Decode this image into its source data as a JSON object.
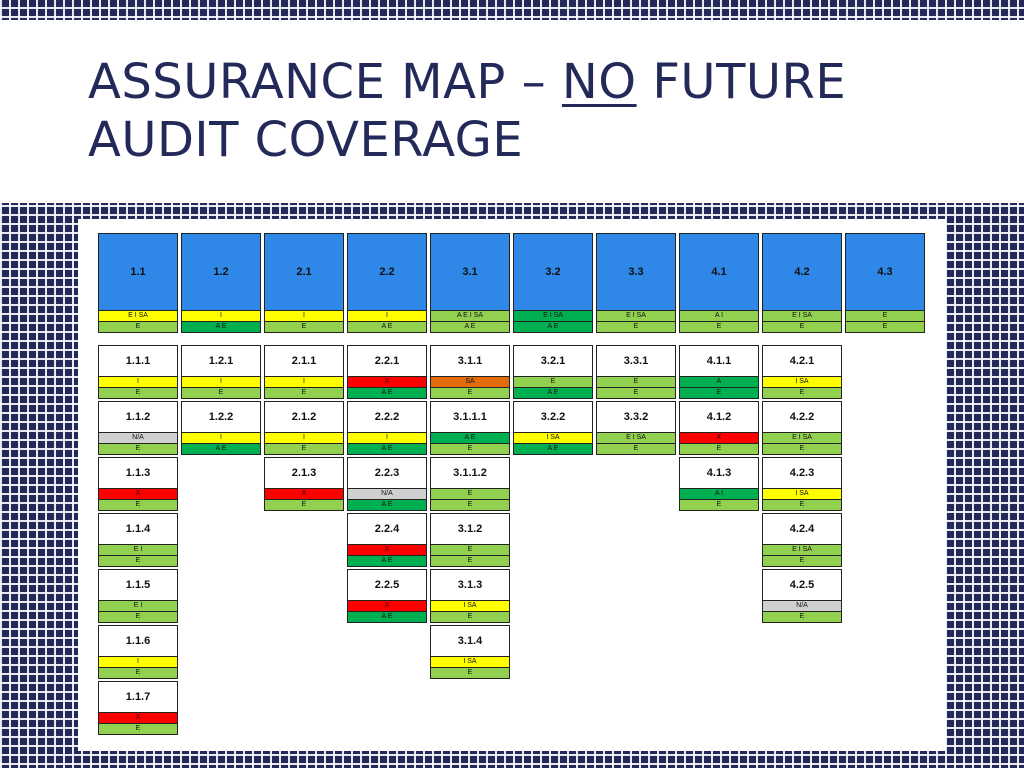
{
  "slide": {
    "title_line1_before": "ASSURANCE MAP – ",
    "title_line1_emph": "NO",
    "title_line1_after": " FUTURE",
    "title_line2": "AUDIT COVERAGE"
  },
  "map": {
    "columns": [
      {
        "id": "1.1",
        "rating": "E I SA",
        "rating_color": "yellow",
        "level": "E",
        "level_color": "lgreen",
        "children": [
          {
            "id": "1.1.1",
            "rating": "I",
            "rating_color": "yellow",
            "level": "E",
            "level_color": "lgreen"
          },
          {
            "id": "1.1.2",
            "rating": "N/A",
            "rating_color": "gray",
            "level": "E",
            "level_color": "lgreen"
          },
          {
            "id": "1.1.3",
            "rating": "X",
            "rating_color": "red",
            "level": "E",
            "level_color": "lgreen"
          },
          {
            "id": "1.1.4",
            "rating": "E I",
            "rating_color": "lgreen",
            "level": "E",
            "level_color": "lgreen"
          },
          {
            "id": "1.1.5",
            "rating": "E I",
            "rating_color": "lgreen",
            "level": "E",
            "level_color": "lgreen"
          },
          {
            "id": "1.1.6",
            "rating": "I",
            "rating_color": "yellow",
            "level": "E",
            "level_color": "lgreen"
          },
          {
            "id": "1.1.7",
            "rating": "X",
            "rating_color": "red",
            "level": "E",
            "level_color": "lgreen"
          }
        ]
      },
      {
        "id": "1.2",
        "rating": "I",
        "rating_color": "yellow",
        "level": "A E",
        "level_color": "dgreen",
        "children": [
          {
            "id": "1.2.1",
            "rating": "I",
            "rating_color": "yellow",
            "level": "E",
            "level_color": "lgreen"
          },
          {
            "id": "1.2.2",
            "rating": "I",
            "rating_color": "yellow",
            "level": "A E",
            "level_color": "dgreen"
          }
        ]
      },
      {
        "id": "2.1",
        "rating": "I",
        "rating_color": "yellow",
        "level": "E",
        "level_color": "lgreen",
        "children": [
          {
            "id": "2.1.1",
            "rating": "I",
            "rating_color": "yellow",
            "level": "E",
            "level_color": "lgreen"
          },
          {
            "id": "2.1.2",
            "rating": "I",
            "rating_color": "yellow",
            "level": "E",
            "level_color": "lgreen"
          },
          {
            "id": "2.1.3",
            "rating": "X",
            "rating_color": "red",
            "level": "E",
            "level_color": "lgreen"
          }
        ]
      },
      {
        "id": "2.2",
        "rating": "I",
        "rating_color": "yellow",
        "level": "A E",
        "level_color": "lgreen",
        "children": [
          {
            "id": "2.2.1",
            "rating": "X",
            "rating_color": "red",
            "level": "A E",
            "level_color": "dgreen"
          },
          {
            "id": "2.2.2",
            "rating": "I",
            "rating_color": "yellow",
            "level": "A E",
            "level_color": "dgreen"
          },
          {
            "id": "2.2.3",
            "rating": "N/A",
            "rating_color": "gray",
            "level": "A E",
            "level_color": "dgreen"
          },
          {
            "id": "2.2.4",
            "rating": "X",
            "rating_color": "red",
            "level": "A E",
            "level_color": "dgreen"
          },
          {
            "id": "2.2.5",
            "rating": "X",
            "rating_color": "red",
            "level": "A E",
            "level_color": "dgreen"
          }
        ]
      },
      {
        "id": "3.1",
        "rating": "A E I SA",
        "rating_color": "lgreen",
        "level": "A E",
        "level_color": "lgreen",
        "children": [
          {
            "id": "3.1.1",
            "rating": "SA",
            "rating_color": "orange",
            "level": "E",
            "level_color": "lgreen"
          },
          {
            "id": "3.1.1.1",
            "rating": "A E",
            "rating_color": "dgreen",
            "level": "E",
            "level_color": "lgreen"
          },
          {
            "id": "3.1.1.2",
            "rating": "E",
            "rating_color": "lgreen",
            "level": "E",
            "level_color": "lgreen"
          },
          {
            "id": "3.1.2",
            "rating": "E",
            "rating_color": "lgreen",
            "level": "E",
            "level_color": "lgreen"
          },
          {
            "id": "3.1.3",
            "rating": "I SA",
            "rating_color": "yellow",
            "level": "E",
            "level_color": "lgreen"
          },
          {
            "id": "3.1.4",
            "rating": "I SA",
            "rating_color": "yellow",
            "level": "E",
            "level_color": "lgreen"
          }
        ]
      },
      {
        "id": "3.2",
        "rating": "E I SA",
        "rating_color": "dgreen",
        "level": "A E",
        "level_color": "dgreen",
        "children": [
          {
            "id": "3.2.1",
            "rating": "E",
            "rating_color": "lgreen",
            "level": "A E",
            "level_color": "dgreen"
          },
          {
            "id": "3.2.2",
            "rating": "I SA",
            "rating_color": "yellow",
            "level": "A E",
            "level_color": "dgreen"
          }
        ]
      },
      {
        "id": "3.3",
        "rating": "E I SA",
        "rating_color": "lgreen",
        "level": "E",
        "level_color": "lgreen",
        "children": [
          {
            "id": "3.3.1",
            "rating": "E",
            "rating_color": "lgreen",
            "level": "E",
            "level_color": "lgreen"
          },
          {
            "id": "3.3.2",
            "rating": "E I SA",
            "rating_color": "lgreen",
            "level": "E",
            "level_color": "lgreen"
          }
        ]
      },
      {
        "id": "4.1",
        "rating": "A I",
        "rating_color": "lgreen",
        "level": "E",
        "level_color": "lgreen",
        "children": [
          {
            "id": "4.1.1",
            "rating": "A",
            "rating_color": "dgreen",
            "level": "E",
            "level_color": "dgreen"
          },
          {
            "id": "4.1.2",
            "rating": "X",
            "rating_color": "red",
            "level": "E",
            "level_color": "lgreen"
          },
          {
            "id": "4.1.3",
            "rating": "A I",
            "rating_color": "dgreen",
            "level": "E",
            "level_color": "lgreen"
          }
        ]
      },
      {
        "id": "4.2",
        "rating": "E I SA",
        "rating_color": "lgreen",
        "level": "E",
        "level_color": "lgreen",
        "children": [
          {
            "id": "4.2.1",
            "rating": "I SA",
            "rating_color": "yellow",
            "level": "E",
            "level_color": "lgreen"
          },
          {
            "id": "4.2.2",
            "rating": "E I SA",
            "rating_color": "lgreen",
            "level": "E",
            "level_color": "lgreen"
          },
          {
            "id": "4.2.3",
            "rating": "I SA",
            "rating_color": "yellow",
            "level": "E",
            "level_color": "lgreen"
          },
          {
            "id": "4.2.4",
            "rating": "E I SA",
            "rating_color": "lgreen",
            "level": "E",
            "level_color": "lgreen"
          },
          {
            "id": "4.2.5",
            "rating": "N/A",
            "rating_color": "gray",
            "level": "E",
            "level_color": "lgreen"
          }
        ]
      },
      {
        "id": "4.3",
        "rating": "E",
        "rating_color": "lgreen",
        "level": "E",
        "level_color": "lgreen",
        "children": []
      }
    ]
  }
}
